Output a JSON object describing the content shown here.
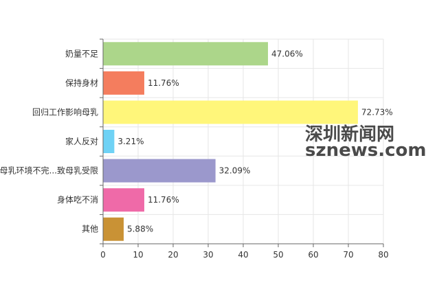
{
  "chart_data": {
    "type": "bar",
    "orientation": "horizontal",
    "categories": [
      "奶量不足",
      "保持身材",
      "回归工作影响母乳",
      "家人反对",
      "哺母乳环境不完...致母乳受限",
      "身体吃不消",
      "其他"
    ],
    "values": [
      47.06,
      11.76,
      72.73,
      3.21,
      32.09,
      11.76,
      5.88
    ],
    "value_labels": [
      "47.06%",
      "11.76%",
      "72.73%",
      "3.21%",
      "32.09%",
      "11.76%",
      "5.88%"
    ],
    "colors": [
      "#acd68a",
      "#f47d5e",
      "#fff67a",
      "#6fd2f5",
      "#9b98cc",
      "#ef6aa8",
      "#c99235"
    ],
    "xlim": [
      0,
      80
    ],
    "xticks": [
      "0",
      "10",
      "20",
      "30",
      "40",
      "50",
      "60",
      "70",
      "80"
    ],
    "grid": true,
    "title": "",
    "xlabel": "",
    "ylabel": ""
  },
  "watermark": {
    "cn": "深圳新闻网",
    "en": "sznews.com"
  }
}
